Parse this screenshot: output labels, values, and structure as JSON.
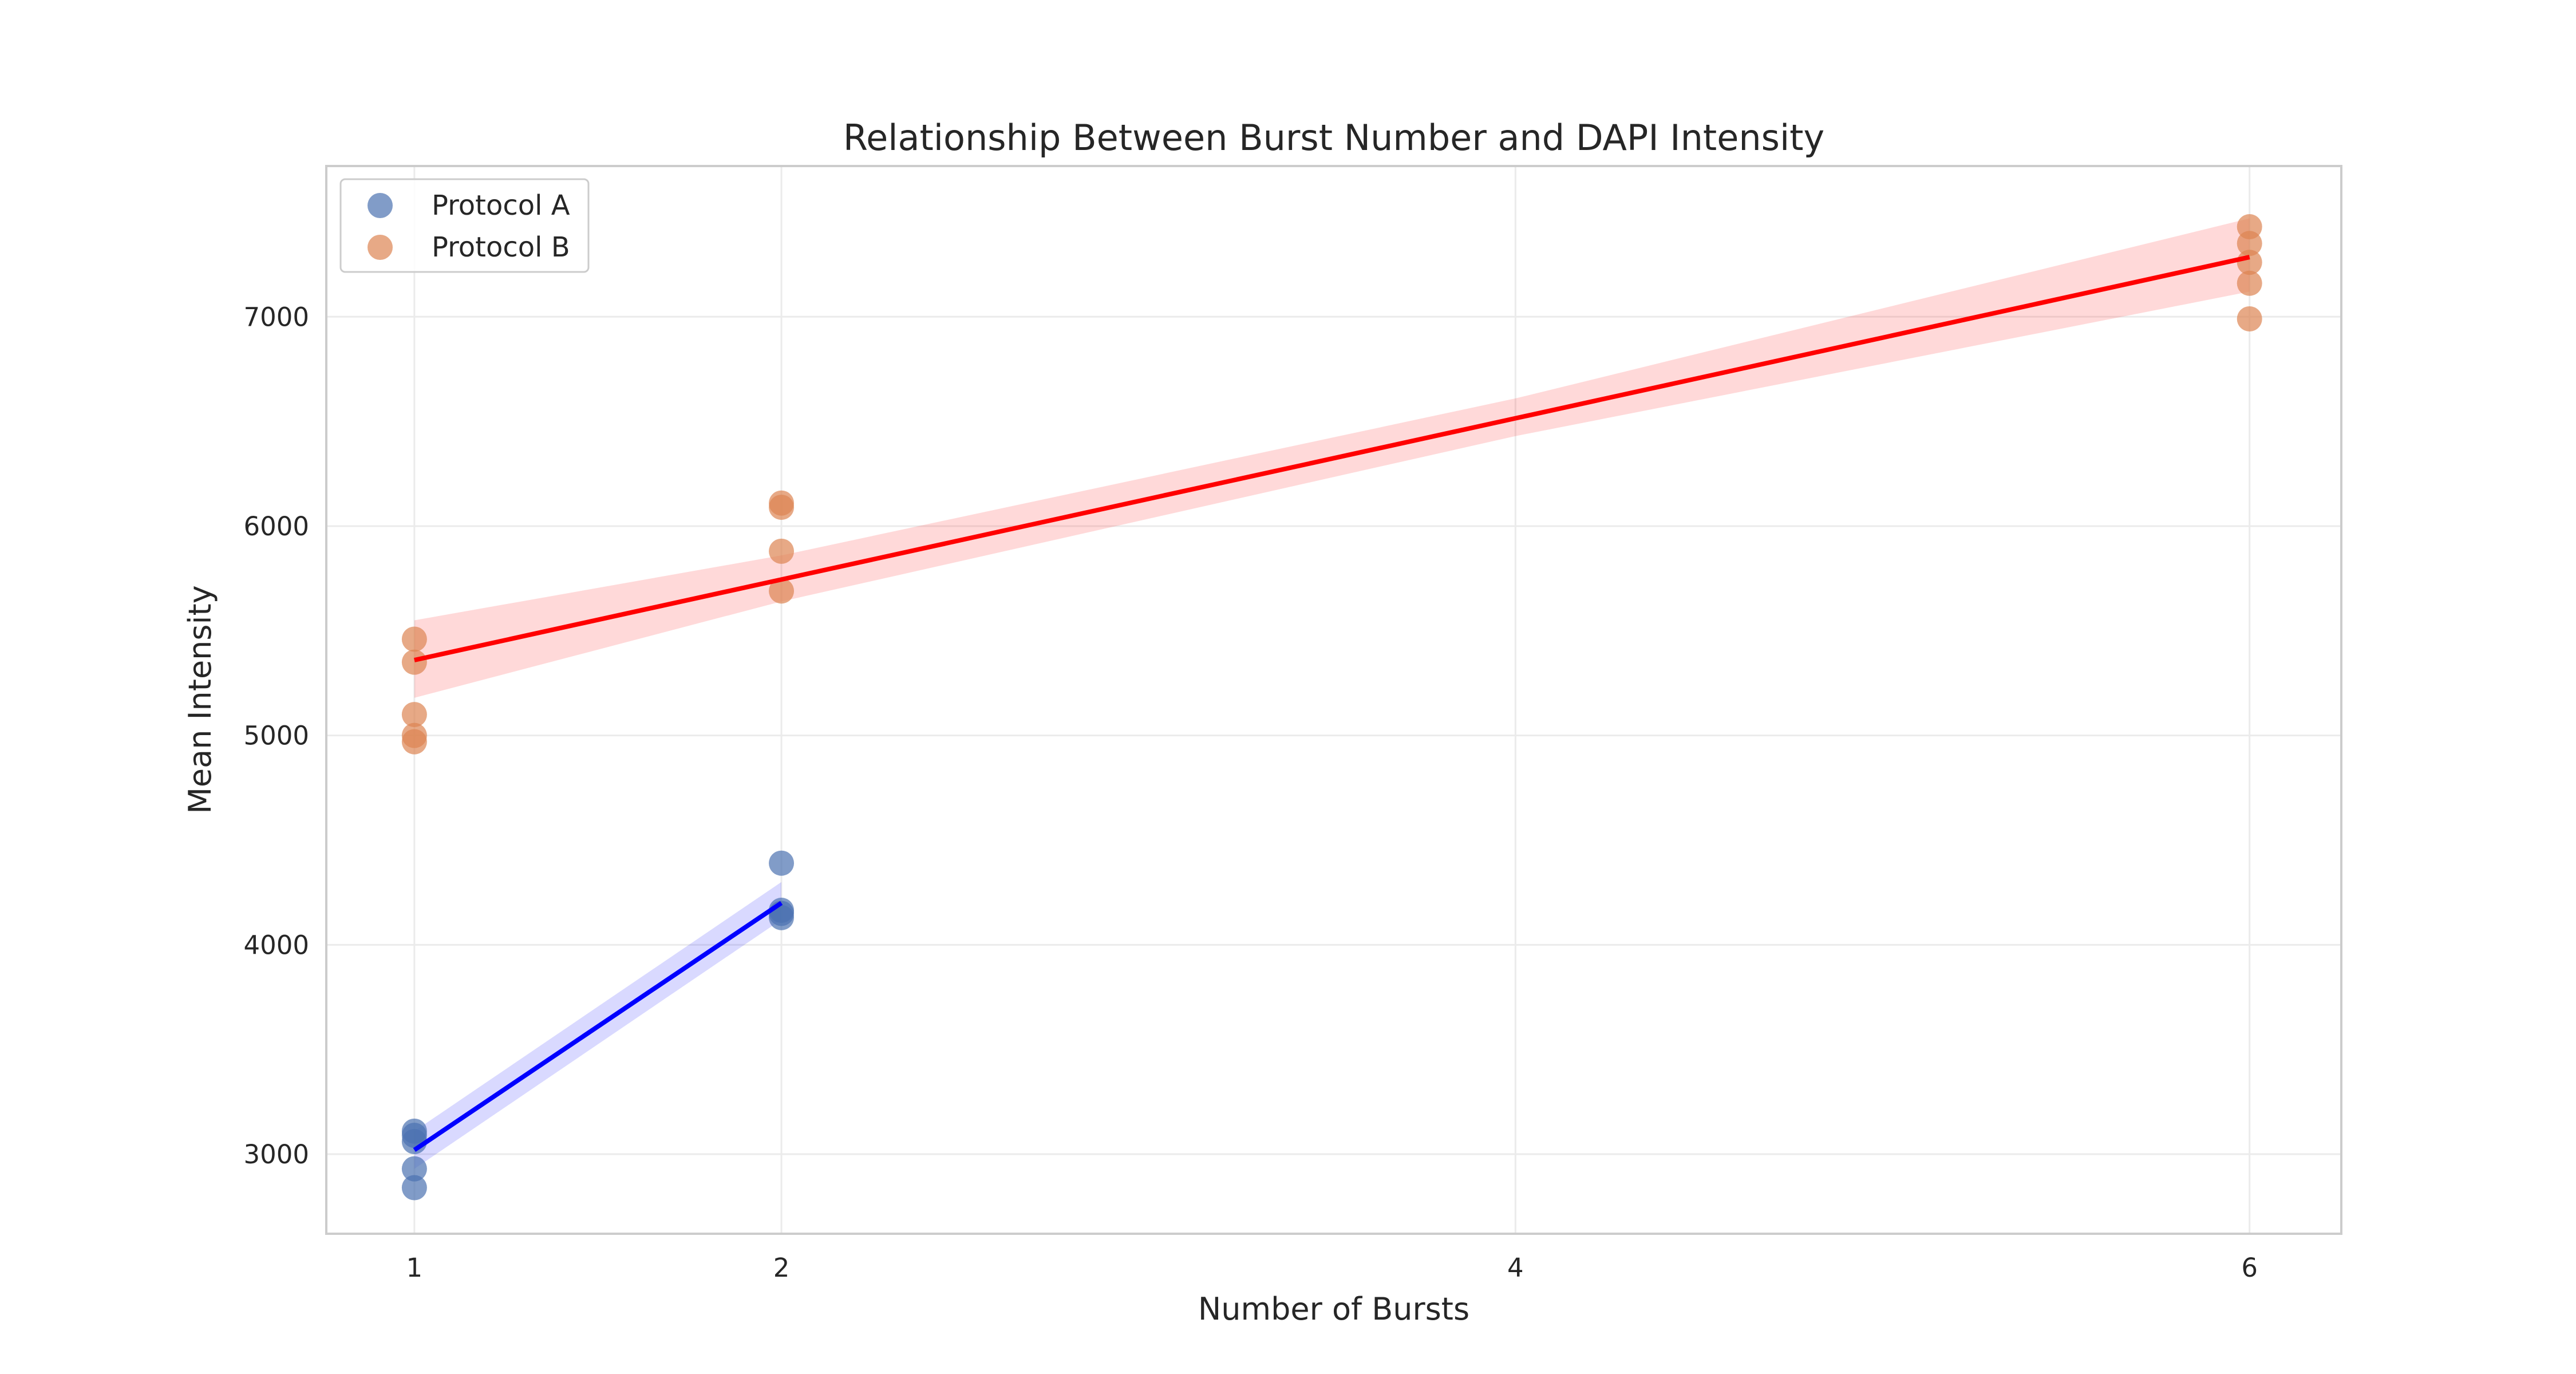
{
  "chart_data": {
    "type": "scatter",
    "title": "Relationship Between Burst Number and DAPI Intensity",
    "xlabel": "Number of Bursts",
    "ylabel": "Mean Intensity",
    "xlim": [
      0.76,
      6.25
    ],
    "ylim": [
      2620,
      7720
    ],
    "xticks": [
      1,
      2,
      4,
      6
    ],
    "yticks": [
      3000,
      4000,
      5000,
      6000,
      7000
    ],
    "grid": true,
    "legend_position": "top-left",
    "series": [
      {
        "name": "Protocol A",
        "color": "#4c72b0",
        "points": [
          {
            "x": 1,
            "y": 3110
          },
          {
            "x": 1,
            "y": 3090
          },
          {
            "x": 1,
            "y": 3060
          },
          {
            "x": 1,
            "y": 2930
          },
          {
            "x": 1,
            "y": 2840
          },
          {
            "x": 2,
            "y": 4390
          },
          {
            "x": 2,
            "y": 4165
          },
          {
            "x": 2,
            "y": 4150
          },
          {
            "x": 2,
            "y": 4130
          }
        ],
        "fit": {
          "color": "#0000ff",
          "x": [
            1,
            2
          ],
          "y": [
            3020,
            4200
          ],
          "ci_lower": [
            2930,
            4120
          ],
          "ci_upper": [
            3110,
            4300
          ]
        }
      },
      {
        "name": "Protocol B",
        "color": "#dd8452",
        "points": [
          {
            "x": 1,
            "y": 5460
          },
          {
            "x": 1,
            "y": 5350
          },
          {
            "x": 1,
            "y": 5100
          },
          {
            "x": 1,
            "y": 5000
          },
          {
            "x": 1,
            "y": 4970
          },
          {
            "x": 2,
            "y": 6110
          },
          {
            "x": 2,
            "y": 6090
          },
          {
            "x": 2,
            "y": 5880
          },
          {
            "x": 2,
            "y": 5690
          },
          {
            "x": 6,
            "y": 7430
          },
          {
            "x": 6,
            "y": 7350
          },
          {
            "x": 6,
            "y": 7260
          },
          {
            "x": 6,
            "y": 7160
          },
          {
            "x": 6,
            "y": 6990
          }
        ],
        "fit": {
          "color": "#ff0000",
          "x": [
            1,
            2,
            4,
            6
          ],
          "y": [
            5360,
            5745,
            6515,
            7285
          ],
          "ci_lower": [
            5180,
            5640,
            6430,
            7120
          ],
          "ci_upper": [
            5550,
            5860,
            6610,
            7470
          ]
        }
      }
    ]
  }
}
